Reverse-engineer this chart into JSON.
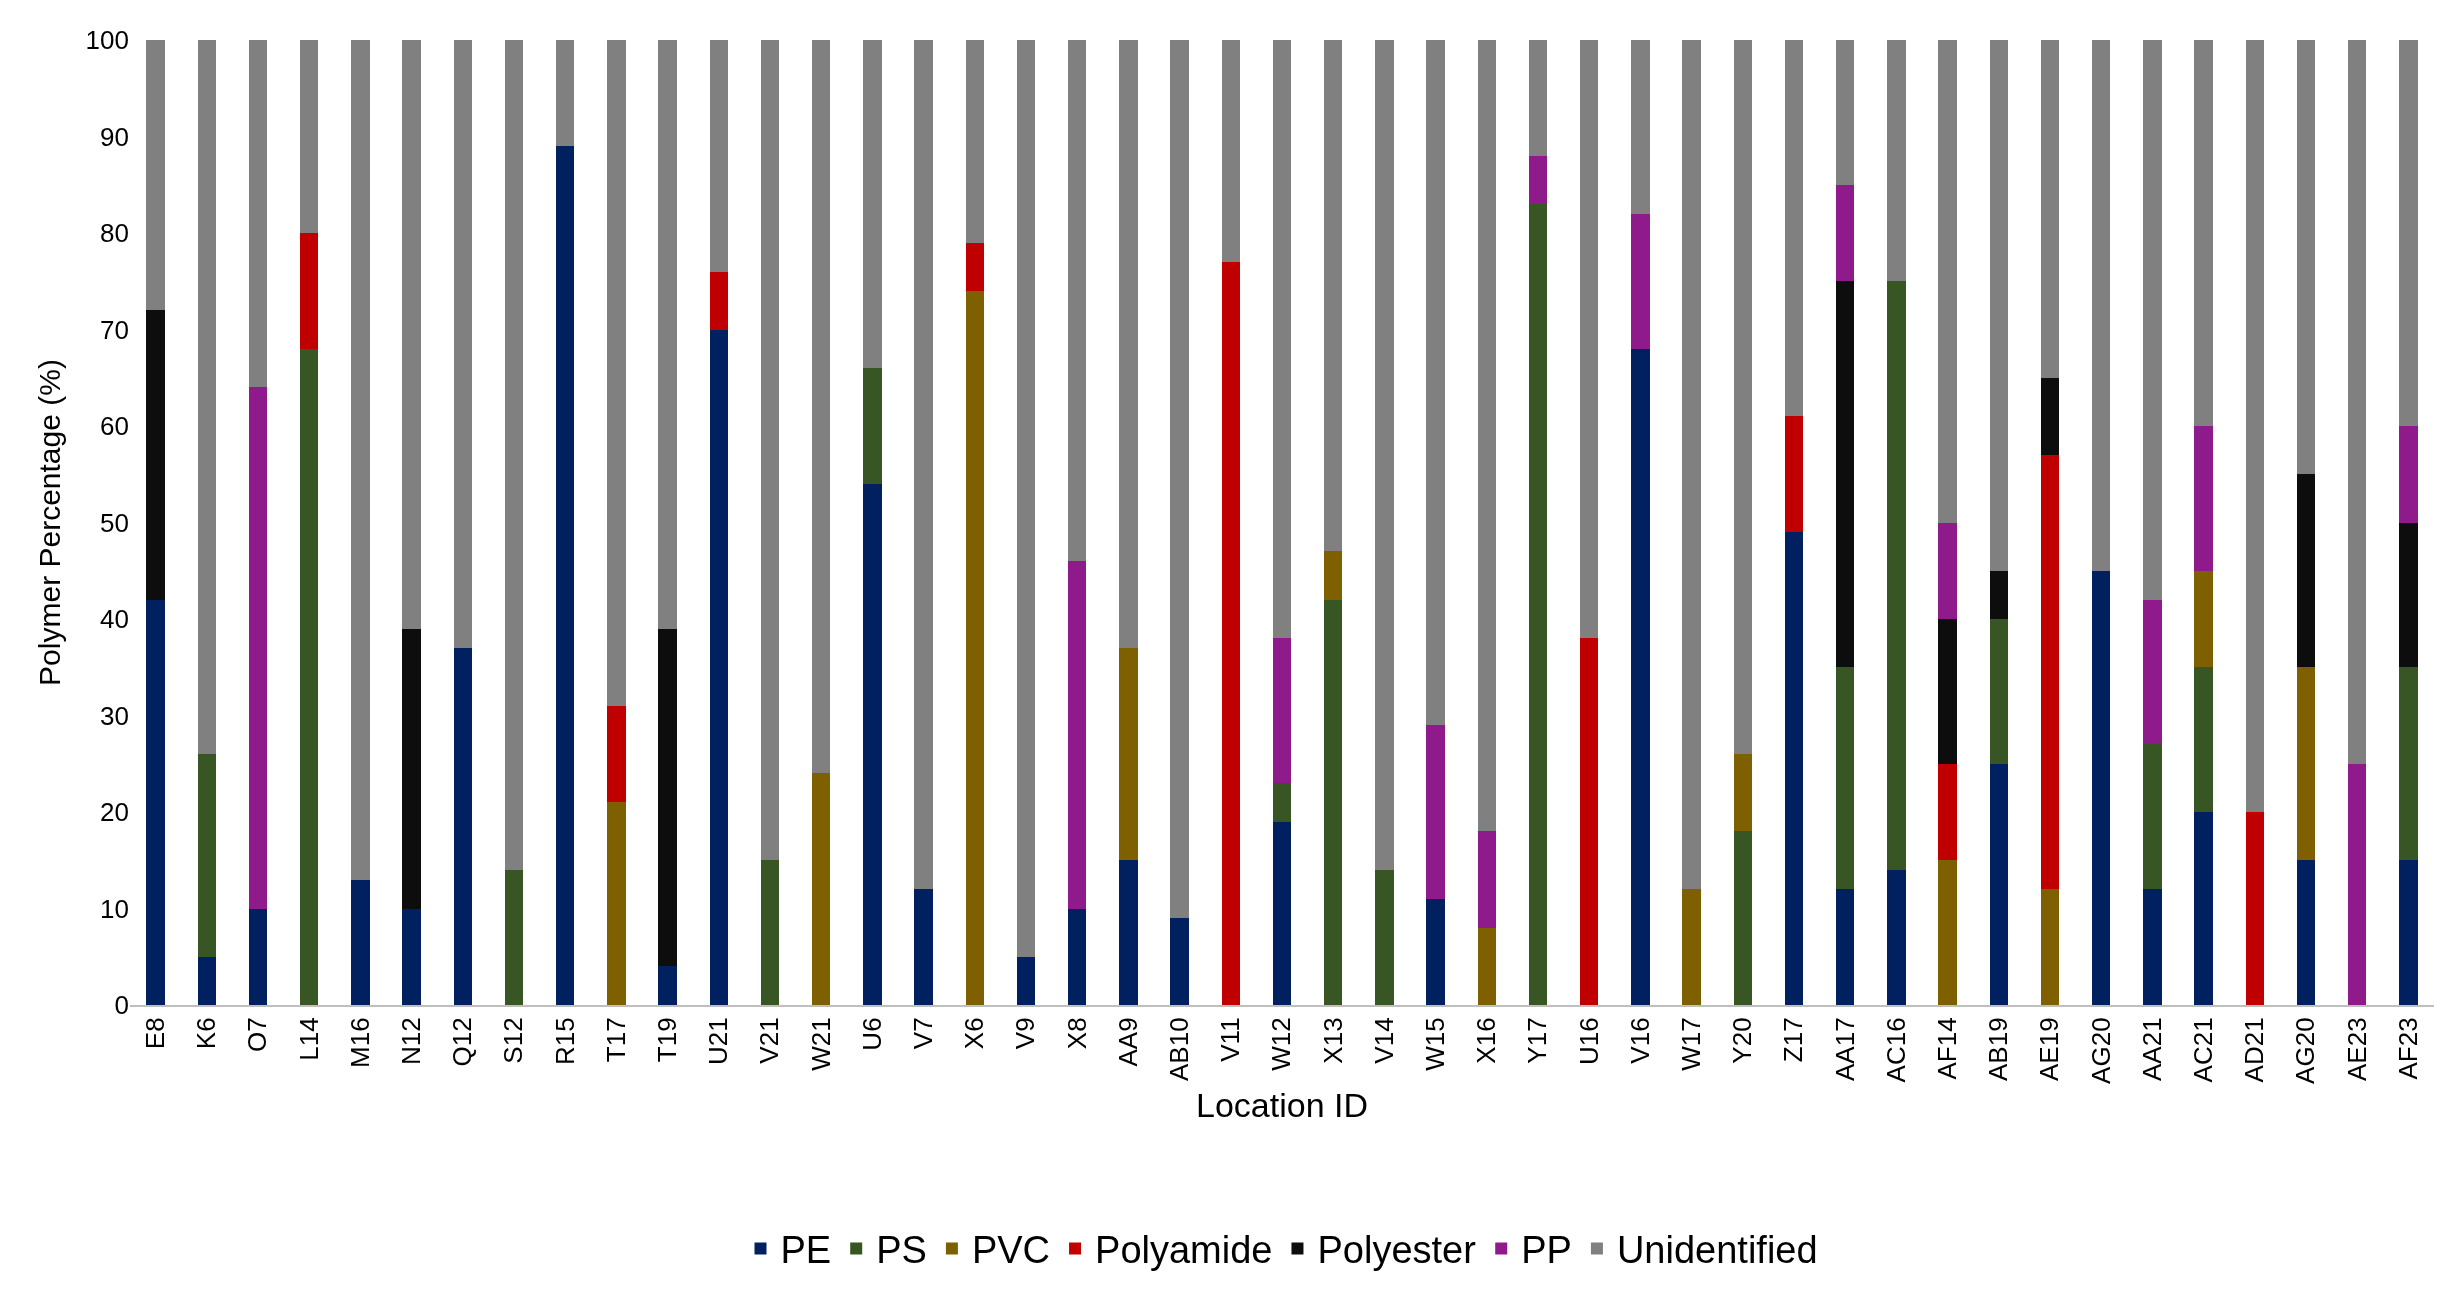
{
  "chart_data": {
    "type": "bar",
    "stacked": true,
    "xlabel": "Location ID",
    "ylabel": "Polymer Percentage (%)",
    "ylim": [
      0,
      100
    ],
    "yticks": [
      0,
      10,
      20,
      30,
      40,
      50,
      60,
      70,
      80,
      90,
      100
    ],
    "grid": false,
    "legend": "bottom",
    "categories": [
      "E8",
      "K6",
      "O7",
      "L14",
      "M16",
      "N12",
      "Q12",
      "S12",
      "R15",
      "T17",
      "T19",
      "U21",
      "V21",
      "W21",
      "U6",
      "V7",
      "X6",
      "V9",
      "X8",
      "AA9",
      "AB10",
      "V11",
      "W12",
      "X13",
      "V14",
      "W15",
      "X16",
      "Y17",
      "U16",
      "V16",
      "W17",
      "Y20",
      "Z17",
      "AA17",
      "AC16",
      "AF14",
      "AB19",
      "AE19",
      "AG20",
      "AA21",
      "AC21",
      "AD21",
      "AG20",
      "AE23",
      "AF23"
    ],
    "series": [
      {
        "name": "PE",
        "color": "#002060",
        "values": [
          42,
          5,
          10,
          0,
          13,
          10,
          37,
          0,
          89,
          0,
          4,
          70,
          0,
          0,
          54,
          12,
          0,
          5,
          10,
          15,
          9,
          0,
          19,
          0,
          0,
          11,
          0,
          0,
          0,
          68,
          0,
          0,
          49,
          12,
          14,
          0,
          25,
          0,
          45,
          12,
          20,
          0,
          15,
          0,
          15
        ]
      },
      {
        "name": "PS",
        "color": "#375623",
        "values": [
          0,
          21,
          0,
          68,
          0,
          0,
          0,
          14,
          0,
          0,
          0,
          0,
          15,
          0,
          12,
          0,
          0,
          0,
          0,
          0,
          0,
          0,
          4,
          42,
          14,
          0,
          0,
          83,
          0,
          0,
          0,
          18,
          0,
          23,
          61,
          0,
          15,
          0,
          0,
          15,
          15,
          0,
          0,
          0,
          20
        ]
      },
      {
        "name": "PVC",
        "color": "#7f6000",
        "values": [
          0,
          0,
          0,
          0,
          0,
          0,
          0,
          0,
          0,
          21,
          0,
          0,
          0,
          24,
          0,
          0,
          74,
          0,
          0,
          22,
          0,
          0,
          0,
          5,
          0,
          0,
          8,
          0,
          0,
          0,
          12,
          8,
          0,
          0,
          0,
          15,
          0,
          12,
          0,
          0,
          10,
          0,
          20,
          0,
          0
        ]
      },
      {
        "name": "Polyamide",
        "color": "#c00000",
        "values": [
          0,
          0,
          0,
          12,
          0,
          0,
          0,
          0,
          0,
          10,
          0,
          6,
          0,
          0,
          0,
          0,
          5,
          0,
          0,
          0,
          0,
          77,
          0,
          0,
          0,
          0,
          0,
          0,
          38,
          0,
          0,
          0,
          12,
          0,
          0,
          10,
          0,
          45,
          0,
          0,
          0,
          20,
          0,
          0,
          0
        ]
      },
      {
        "name": "Polyester",
        "color": "#0d0d0d",
        "values": [
          30,
          0,
          0,
          0,
          0,
          29,
          0,
          0,
          0,
          0,
          35,
          0,
          0,
          0,
          0,
          0,
          0,
          0,
          0,
          0,
          0,
          0,
          0,
          0,
          0,
          0,
          0,
          0,
          0,
          0,
          0,
          0,
          0,
          40,
          0,
          15,
          5,
          8,
          0,
          0,
          0,
          0,
          20,
          0,
          15
        ]
      },
      {
        "name": "PP",
        "color": "#8e1a8c",
        "values": [
          0,
          0,
          54,
          0,
          0,
          0,
          0,
          0,
          0,
          0,
          0,
          0,
          0,
          0,
          0,
          0,
          0,
          0,
          36,
          0,
          0,
          0,
          15,
          0,
          0,
          18,
          10,
          5,
          0,
          14,
          0,
          0,
          0,
          10,
          0,
          10,
          0,
          0,
          0,
          15,
          15,
          0,
          0,
          25,
          10
        ]
      },
      {
        "name": "Unidentified",
        "color": "#808080",
        "values": [
          28,
          74,
          36,
          20,
          87,
          61,
          63,
          86,
          11,
          69,
          61,
          24,
          85,
          76,
          34,
          88,
          21,
          95,
          54,
          63,
          91,
          23,
          62,
          53,
          86,
          71,
          82,
          12,
          62,
          18,
          88,
          74,
          39,
          15,
          25,
          50,
          55,
          35,
          55,
          58,
          40,
          80,
          45,
          75,
          40
        ]
      }
    ]
  }
}
